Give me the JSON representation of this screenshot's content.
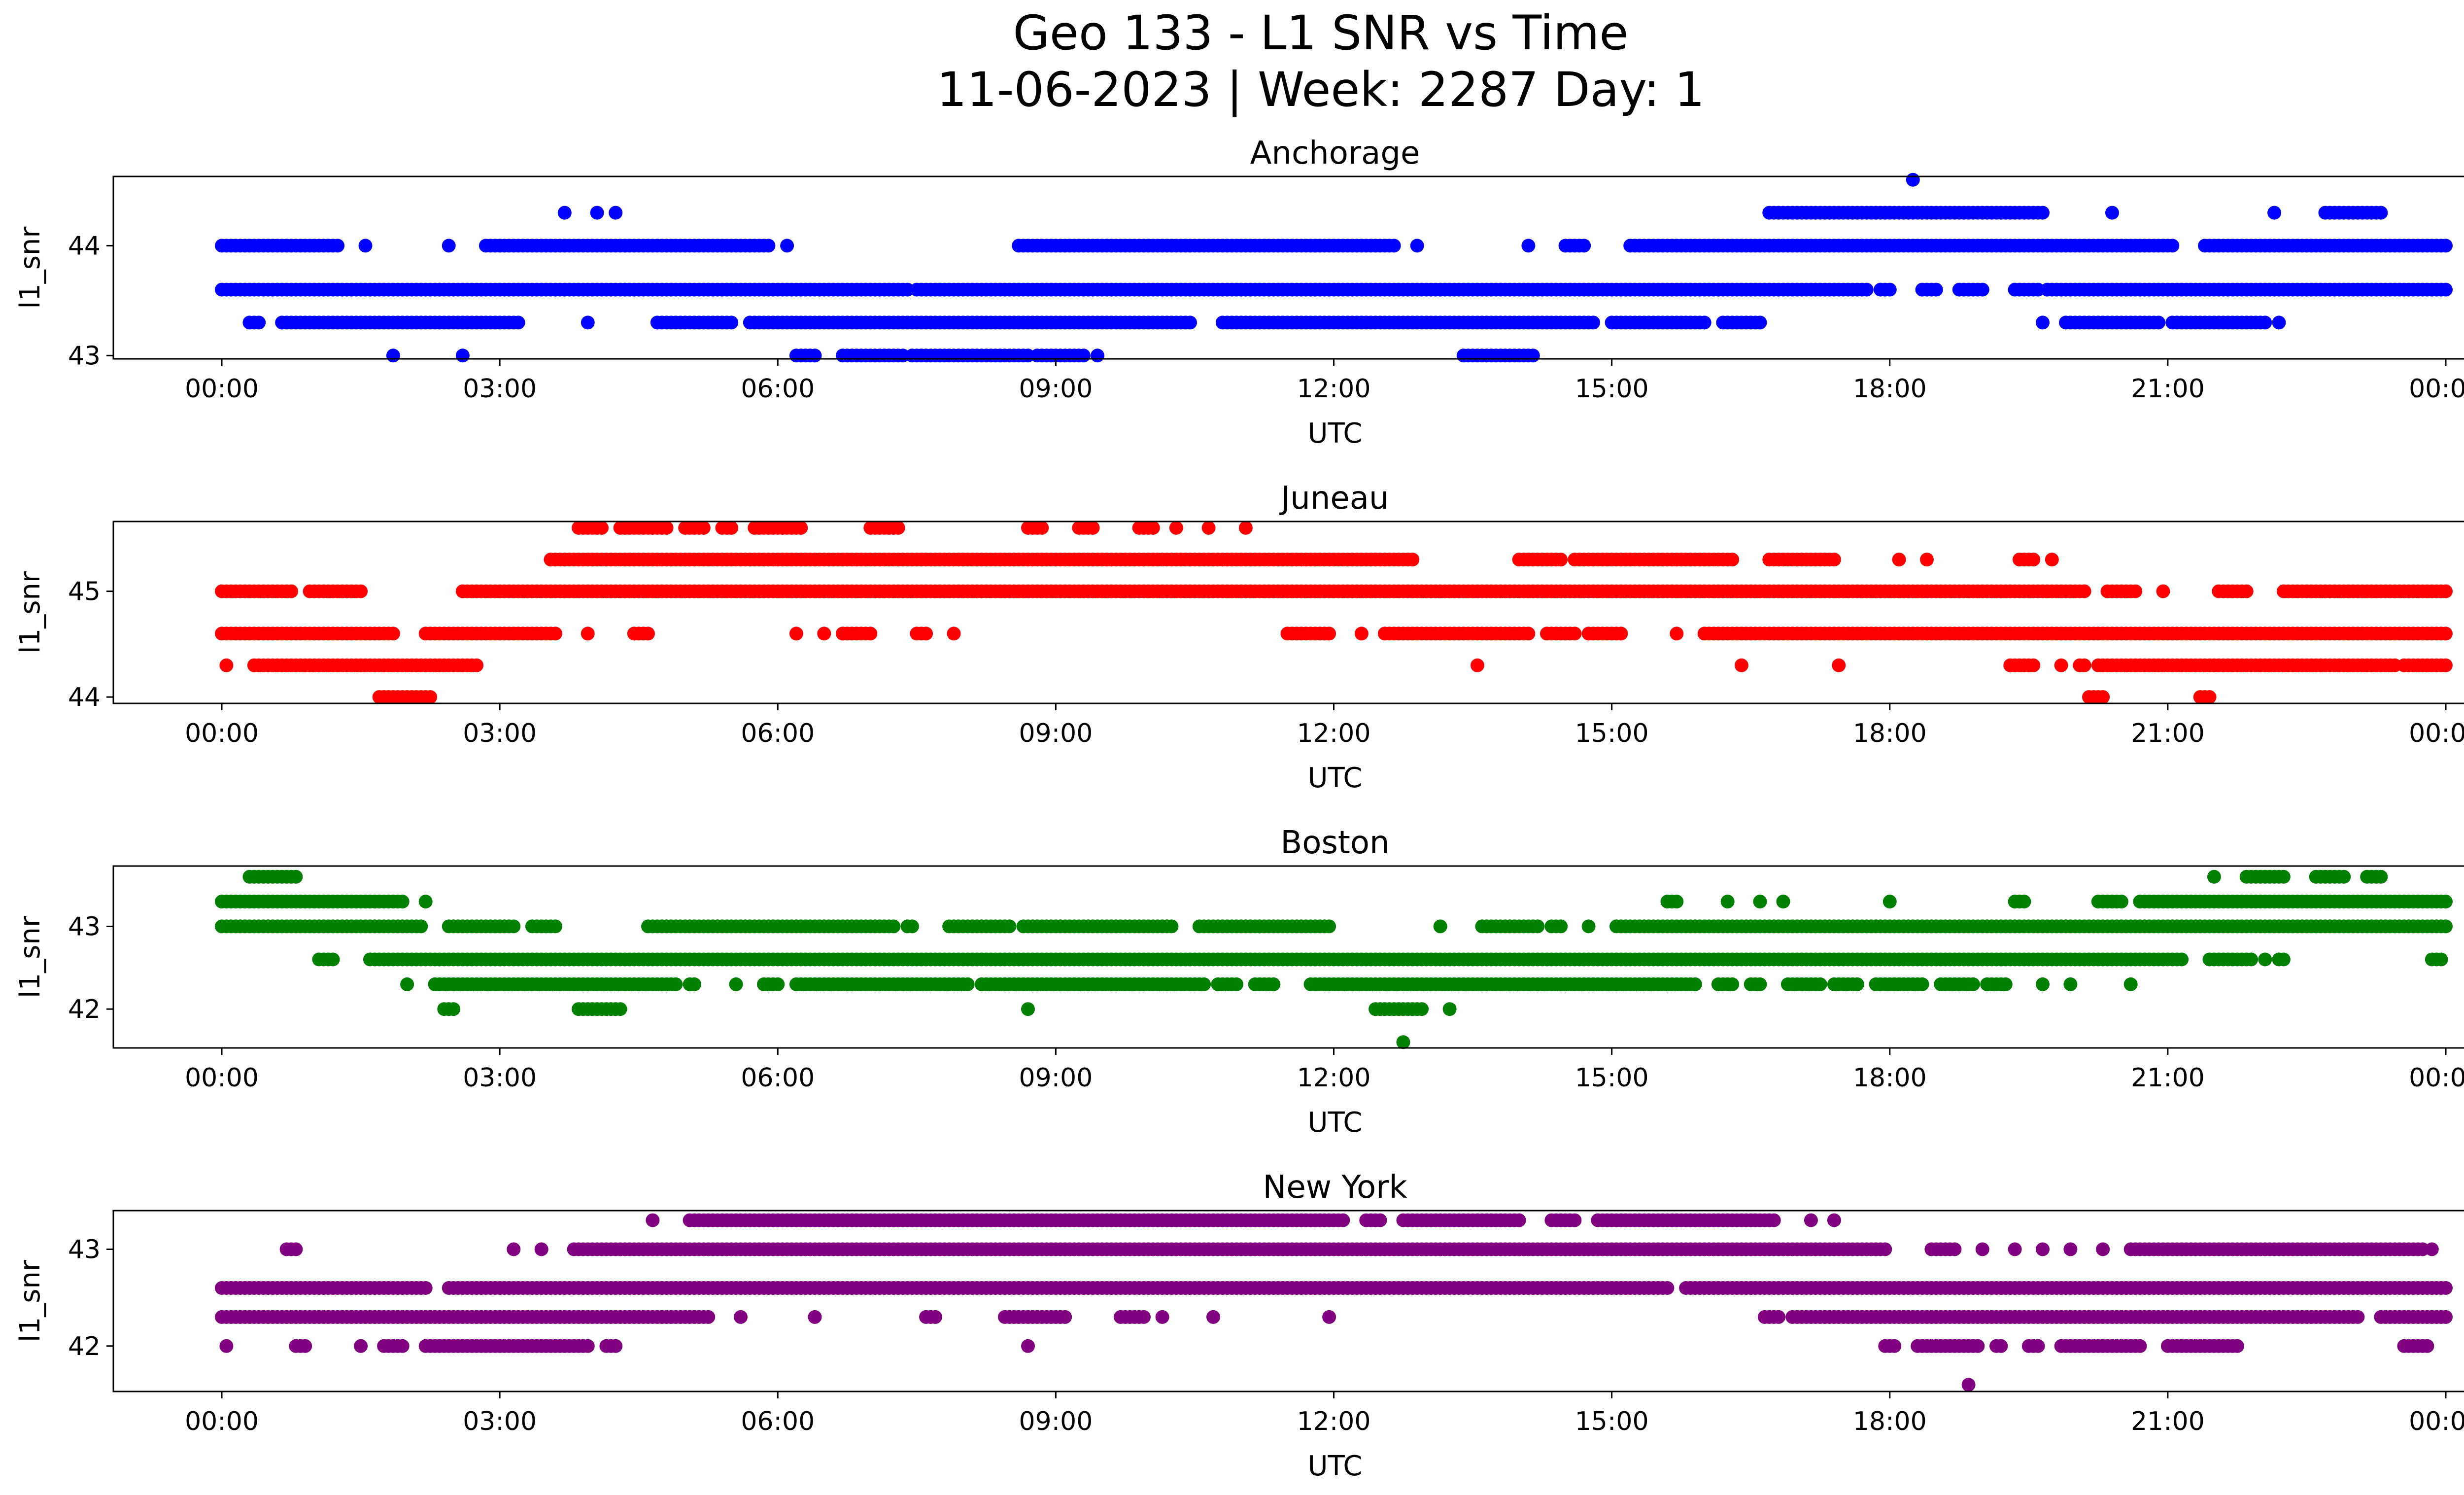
{
  "figure": {
    "title_line1": "Geo 133 - L1 SNR vs Time",
    "title_line2": "11-06-2023 | Week: 2287 Day: 1"
  },
  "chart_data": [
    {
      "type": "scatter",
      "title": "Anchorage",
      "xlabel": "UTC",
      "ylabel": "l1_snr",
      "color": "#0000ff",
      "x_ticks": [
        "00:00",
        "03:00",
        "06:00",
        "09:00",
        "12:00",
        "15:00",
        "18:00",
        "21:00",
        "00:00"
      ],
      "x_range_hours": [
        -1.15,
        25.2
      ],
      "y_ticks": [
        43,
        44
      ],
      "ylim": [
        42.97,
        44.63
      ],
      "grid": false,
      "levels": [
        {
          "y": 44.6,
          "segments": [
            [
              18.25,
              18.25
            ]
          ]
        },
        {
          "y": 44.3,
          "segments": [
            [
              3.7,
              3.7
            ],
            [
              4.05,
              4.05
            ],
            [
              4.25,
              4.25
            ],
            [
              16.7,
              19.65
            ],
            [
              20.4,
              20.4
            ],
            [
              22.15,
              22.15
            ],
            [
              22.7,
              23.3
            ]
          ]
        },
        {
          "y": 44.0,
          "segments": [
            [
              0.0,
              1.25
            ],
            [
              1.55,
              1.55
            ],
            [
              2.45,
              2.45
            ],
            [
              2.85,
              5.9
            ],
            [
              6.1,
              6.1
            ],
            [
              8.6,
              12.65
            ],
            [
              12.9,
              12.9
            ],
            [
              14.1,
              14.1
            ],
            [
              14.5,
              14.7
            ],
            [
              15.2,
              21.05
            ],
            [
              21.4,
              24.0
            ]
          ]
        },
        {
          "y": 43.6,
          "segments": [
            [
              0.0,
              7.4
            ],
            [
              7.5,
              17.75
            ],
            [
              17.9,
              18.0
            ],
            [
              18.35,
              18.5
            ],
            [
              18.75,
              19.0
            ],
            [
              19.35,
              19.6
            ],
            [
              19.7,
              24.0
            ]
          ]
        },
        {
          "y": 43.3,
          "segments": [
            [
              0.3,
              0.4
            ],
            [
              0.65,
              3.2
            ],
            [
              3.95,
              3.95
            ],
            [
              4.7,
              5.5
            ],
            [
              5.7,
              10.45
            ],
            [
              10.8,
              11.95
            ],
            [
              12.0,
              14.8
            ],
            [
              15.0,
              16.0
            ],
            [
              16.2,
              16.6
            ],
            [
              19.65,
              19.65
            ],
            [
              19.9,
              20.9
            ],
            [
              21.05,
              22.05
            ],
            [
              22.2,
              22.2
            ]
          ]
        },
        {
          "y": 43.0,
          "segments": [
            [
              1.85,
              1.85
            ],
            [
              2.6,
              2.6
            ],
            [
              6.2,
              6.4
            ],
            [
              6.7,
              7.35
            ],
            [
              7.45,
              8.7
            ],
            [
              8.8,
              9.3
            ],
            [
              9.45,
              9.45
            ],
            [
              13.4,
              14.15
            ]
          ]
        }
      ]
    },
    {
      "type": "scatter",
      "title": "Juneau",
      "xlabel": "UTC",
      "ylabel": "l1_snr",
      "color": "#ff0000",
      "x_ticks": [
        "00:00",
        "03:00",
        "06:00",
        "09:00",
        "12:00",
        "15:00",
        "18:00",
        "21:00",
        "00:00"
      ],
      "x_range_hours": [
        -1.15,
        25.2
      ],
      "y_ticks": [
        44,
        45
      ],
      "ylim": [
        43.94,
        45.66
      ],
      "grid": false,
      "levels": [
        {
          "y": 45.6,
          "segments": [
            [
              3.85,
              4.1
            ],
            [
              4.3,
              4.8
            ],
            [
              5.0,
              5.2
            ],
            [
              5.4,
              5.5
            ],
            [
              5.75,
              6.25
            ],
            [
              7.0,
              7.3
            ],
            [
              8.7,
              8.85
            ],
            [
              9.25,
              9.4
            ],
            [
              9.9,
              10.05
            ],
            [
              10.3,
              10.3
            ],
            [
              10.65,
              10.65
            ],
            [
              11.05,
              11.05
            ]
          ]
        },
        {
          "y": 45.3,
          "segments": [
            [
              3.55,
              12.85
            ],
            [
              14.0,
              14.45
            ],
            [
              14.6,
              16.3
            ],
            [
              16.7,
              17.4
            ],
            [
              18.1,
              18.1
            ],
            [
              18.4,
              18.4
            ],
            [
              19.4,
              19.55
            ],
            [
              19.75,
              19.75
            ]
          ]
        },
        {
          "y": 45.0,
          "segments": [
            [
              0.0,
              0.75
            ],
            [
              0.95,
              1.5
            ],
            [
              2.6,
              20.1
            ],
            [
              20.35,
              20.65
            ],
            [
              20.95,
              20.95
            ],
            [
              21.55,
              21.85
            ],
            [
              22.25,
              24.0
            ]
          ]
        },
        {
          "y": 44.6,
          "segments": [
            [
              0.0,
              1.85
            ],
            [
              2.2,
              3.6
            ],
            [
              3.95,
              3.95
            ],
            [
              4.45,
              4.6
            ],
            [
              6.2,
              6.2
            ],
            [
              6.5,
              6.5
            ],
            [
              6.7,
              7.0
            ],
            [
              7.5,
              7.6
            ],
            [
              7.9,
              7.9
            ],
            [
              11.5,
              11.95
            ],
            [
              12.3,
              12.3
            ],
            [
              12.55,
              14.1
            ],
            [
              14.3,
              14.6
            ],
            [
              14.75,
              15.1
            ],
            [
              15.7,
              15.7
            ],
            [
              16.0,
              24.0
            ]
          ]
        },
        {
          "y": 44.3,
          "segments": [
            [
              0.05,
              0.05
            ],
            [
              0.35,
              2.75
            ],
            [
              13.55,
              13.55
            ],
            [
              16.4,
              16.4
            ],
            [
              17.45,
              17.45
            ],
            [
              19.3,
              19.55
            ],
            [
              19.85,
              19.85
            ],
            [
              20.05,
              20.1
            ],
            [
              20.25,
              23.45
            ],
            [
              23.55,
              24.0
            ]
          ]
        },
        {
          "y": 44.0,
          "segments": [
            [
              1.7,
              2.25
            ],
            [
              20.15,
              20.3
            ],
            [
              21.35,
              21.45
            ]
          ]
        }
      ]
    },
    {
      "type": "scatter",
      "title": "Boston",
      "xlabel": "UTC",
      "ylabel": "l1_snr",
      "color": "#008000",
      "x_ticks": [
        "00:00",
        "03:00",
        "06:00",
        "09:00",
        "12:00",
        "15:00",
        "18:00",
        "21:00",
        "00:00"
      ],
      "x_range_hours": [
        -1.15,
        25.2
      ],
      "y_ticks": [
        42,
        43
      ],
      "ylim": [
        41.53,
        43.73
      ],
      "grid": false,
      "levels": [
        {
          "y": 43.6,
          "segments": [
            [
              0.3,
              0.8
            ],
            [
              21.5,
              21.5
            ],
            [
              21.85,
              22.25
            ],
            [
              22.6,
              22.9
            ],
            [
              23.15,
              23.3
            ]
          ]
        },
        {
          "y": 43.3,
          "segments": [
            [
              0.0,
              1.95
            ],
            [
              2.2,
              2.2
            ],
            [
              15.6,
              15.7
            ],
            [
              16.25,
              16.25
            ],
            [
              16.6,
              16.6
            ],
            [
              16.85,
              16.85
            ],
            [
              18.0,
              18.0
            ],
            [
              19.35,
              19.45
            ],
            [
              20.25,
              20.5
            ],
            [
              20.7,
              24.0
            ]
          ]
        },
        {
          "y": 43.0,
          "segments": [
            [
              0.0,
              2.15
            ],
            [
              2.45,
              3.15
            ],
            [
              3.35,
              3.6
            ],
            [
              4.6,
              7.25
            ],
            [
              7.4,
              7.45
            ],
            [
              7.85,
              8.5
            ],
            [
              8.65,
              10.25
            ],
            [
              10.55,
              11.95
            ],
            [
              11.2,
              11.2
            ],
            [
              13.15,
              13.15
            ],
            [
              13.6,
              14.2
            ],
            [
              14.35,
              14.45
            ],
            [
              14.75,
              14.75
            ],
            [
              15.05,
              24.0
            ]
          ]
        },
        {
          "y": 42.6,
          "segments": [
            [
              1.05,
              1.2
            ],
            [
              1.6,
              21.15
            ],
            [
              21.45,
              21.9
            ],
            [
              22.05,
              22.05
            ],
            [
              22.2,
              22.25
            ],
            [
              23.85,
              23.95
            ]
          ]
        },
        {
          "y": 42.3,
          "segments": [
            [
              2.0,
              2.0
            ],
            [
              2.3,
              4.9
            ],
            [
              5.05,
              5.1
            ],
            [
              5.55,
              5.55
            ],
            [
              5.85,
              6.0
            ],
            [
              6.2,
              8.05
            ],
            [
              8.2,
              10.6
            ],
            [
              10.75,
              10.95
            ],
            [
              11.15,
              11.35
            ],
            [
              11.75,
              15.9
            ],
            [
              16.15,
              16.3
            ],
            [
              16.5,
              16.6
            ],
            [
              16.9,
              17.25
            ],
            [
              17.4,
              17.65
            ],
            [
              17.85,
              18.1
            ],
            [
              18.05,
              18.35
            ],
            [
              18.55,
              18.9
            ],
            [
              19.05,
              19.25
            ],
            [
              19.65,
              19.65
            ],
            [
              19.95,
              19.95
            ],
            [
              20.6,
              20.6
            ]
          ]
        },
        {
          "y": 42.0,
          "segments": [
            [
              2.4,
              2.5
            ],
            [
              3.85,
              4.3
            ],
            [
              8.7,
              8.7
            ],
            [
              12.45,
              12.95
            ],
            [
              13.25,
              13.25
            ]
          ]
        },
        {
          "y": 41.6,
          "segments": [
            [
              12.75,
              12.75
            ]
          ]
        }
      ]
    },
    {
      "type": "scatter",
      "title": "New York",
      "xlabel": "UTC",
      "ylabel": "l1_snr",
      "color": "#800080",
      "x_ticks": [
        "00:00",
        "03:00",
        "06:00",
        "09:00",
        "12:00",
        "15:00",
        "18:00",
        "21:00",
        "00:00"
      ],
      "x_range_hours": [
        -1.15,
        25.2
      ],
      "y_ticks": [
        42,
        43
      ],
      "ylim": [
        41.53,
        43.4
      ],
      "grid": false,
      "levels": [
        {
          "y": 43.3,
          "segments": [
            [
              4.65,
              4.65
            ],
            [
              5.05,
              12.1
            ],
            [
              12.35,
              12.5
            ],
            [
              12.75,
              14.0
            ],
            [
              14.35,
              14.6
            ],
            [
              14.85,
              16.75
            ],
            [
              17.15,
              17.15
            ],
            [
              17.4,
              17.4
            ]
          ]
        },
        {
          "y": 43.0,
          "segments": [
            [
              0.7,
              0.8
            ],
            [
              3.15,
              3.15
            ],
            [
              3.45,
              3.45
            ],
            [
              3.8,
              17.95
            ],
            [
              18.45,
              18.7
            ],
            [
              19.0,
              19.0
            ],
            [
              19.35,
              19.35
            ],
            [
              19.65,
              19.65
            ],
            [
              19.95,
              19.95
            ],
            [
              20.3,
              20.3
            ],
            [
              20.6,
              23.75
            ],
            [
              23.85,
              23.85
            ]
          ]
        },
        {
          "y": 42.6,
          "segments": [
            [
              0.0,
              2.2
            ],
            [
              2.45,
              15.6
            ],
            [
              15.8,
              24.0
            ]
          ]
        },
        {
          "y": 42.3,
          "segments": [
            [
              0.0,
              5.25
            ],
            [
              5.6,
              5.6
            ],
            [
              6.4,
              6.4
            ],
            [
              7.6,
              7.7
            ],
            [
              8.45,
              9.1
            ],
            [
              9.7,
              9.95
            ],
            [
              10.15,
              10.15
            ],
            [
              10.7,
              10.7
            ],
            [
              11.95,
              11.95
            ],
            [
              16.65,
              16.8
            ],
            [
              16.95,
              23.05
            ],
            [
              23.3,
              24.0
            ]
          ]
        },
        {
          "y": 42.0,
          "segments": [
            [
              0.05,
              0.05
            ],
            [
              0.8,
              0.9
            ],
            [
              1.5,
              1.5
            ],
            [
              1.75,
              1.95
            ],
            [
              2.2,
              3.95
            ],
            [
              4.15,
              4.25
            ],
            [
              8.7,
              8.7
            ],
            [
              17.95,
              18.05
            ],
            [
              18.3,
              18.95
            ],
            [
              19.15,
              19.2
            ],
            [
              19.5,
              19.6
            ],
            [
              19.85,
              20.7
            ],
            [
              21.0,
              21.75
            ],
            [
              23.55,
              23.8
            ]
          ]
        },
        {
          "y": 41.6,
          "segments": [
            [
              18.85,
              18.85
            ]
          ]
        }
      ]
    }
  ]
}
